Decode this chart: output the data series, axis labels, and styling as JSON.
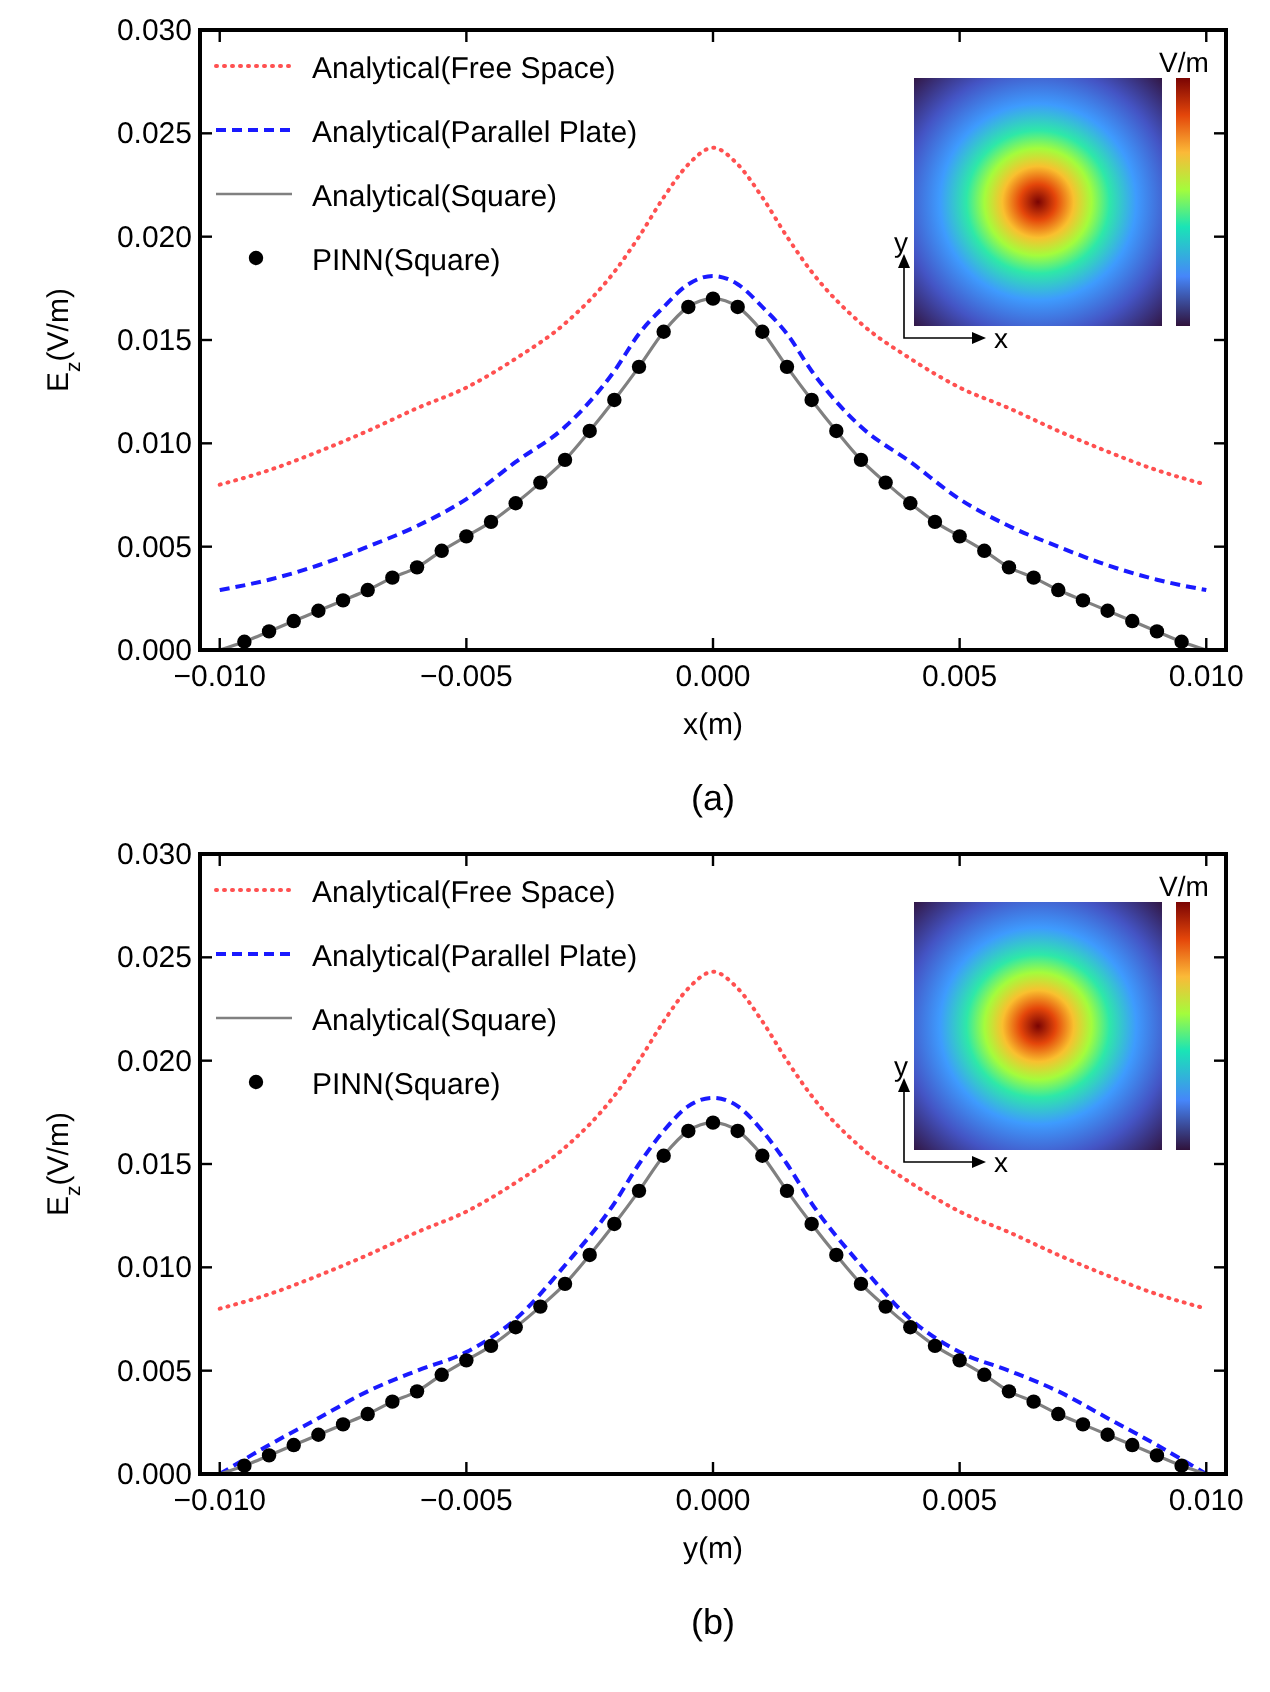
{
  "chart_data": [
    {
      "type": "line",
      "title": "(a)",
      "xlabel": "x(m)",
      "ylabel": "E$_{z}$(V/m)",
      "xlim": [
        -0.0104,
        0.0104
      ],
      "ylim": [
        0,
        0.03
      ],
      "xticks": [
        {
          "value": -0.01,
          "label": "−0.010"
        },
        {
          "value": -0.005,
          "label": "−0.005"
        },
        {
          "value": 0,
          "label": "0.000"
        },
        {
          "value": 0.005,
          "label": "0.005"
        },
        {
          "value": 0.01,
          "label": "0.010"
        }
      ],
      "yticks": [
        {
          "value": 0,
          "label": "0.000"
        },
        {
          "value": 0.005,
          "label": "0.005"
        },
        {
          "value": 0.01,
          "label": "0.010"
        },
        {
          "value": 0.015,
          "label": "0.015"
        },
        {
          "value": 0.02,
          "label": "0.020"
        },
        {
          "value": 0.025,
          "label": "0.025"
        },
        {
          "value": 0.03,
          "label": "0.030"
        }
      ],
      "legend": "top left",
      "grid": false,
      "annotations": [
        "V/m",
        "x",
        "y"
      ],
      "series": [
        {
          "name": "Analytical(Free Space)",
          "line_style": "dotted",
          "color": "#ff5050",
          "x": [
            -0.01,
            -0.009,
            -0.008,
            -0.007,
            -0.006,
            -0.005,
            -0.004,
            -0.003,
            -0.002,
            -0.0015,
            -0.001,
            -0.0005,
            0,
            0.0005,
            0.001,
            0.0015,
            0.002,
            0.003,
            0.004,
            0.005,
            0.006,
            0.007,
            0.008,
            0.009,
            0.01
          ],
          "values": [
            0.008,
            0.0087,
            0.0096,
            0.0106,
            0.0117,
            0.0127,
            0.0141,
            0.0158,
            0.0183,
            0.02,
            0.0219,
            0.0235,
            0.0243,
            0.0235,
            0.0219,
            0.02,
            0.0183,
            0.0158,
            0.0141,
            0.0127,
            0.0117,
            0.0106,
            0.0096,
            0.0087,
            0.008
          ]
        },
        {
          "name": "Analytical(Parallel Plate)",
          "line_style": "dashed",
          "color": "#1a1aff",
          "x": [
            -0.01,
            -0.009,
            -0.008,
            -0.007,
            -0.006,
            -0.005,
            -0.004,
            -0.003,
            -0.002,
            -0.0015,
            -0.001,
            -0.0005,
            0,
            0.0005,
            0.001,
            0.0015,
            0.002,
            0.003,
            0.004,
            0.005,
            0.006,
            0.007,
            0.008,
            0.009,
            0.01
          ],
          "values": [
            0.0029,
            0.0034,
            0.0041,
            0.005,
            0.006,
            0.0073,
            0.0091,
            0.0108,
            0.0135,
            0.0153,
            0.0166,
            0.0177,
            0.0181,
            0.0177,
            0.0166,
            0.0153,
            0.0135,
            0.0108,
            0.0091,
            0.0073,
            0.006,
            0.005,
            0.0041,
            0.0034,
            0.0029
          ]
        },
        {
          "name": "Analytical(Square)",
          "line_style": "solid",
          "color": "#808080",
          "x": [
            -0.01,
            -0.0095,
            -0.009,
            -0.0085,
            -0.008,
            -0.0075,
            -0.007,
            -0.0065,
            -0.006,
            -0.0055,
            -0.005,
            -0.0045,
            -0.004,
            -0.0035,
            -0.003,
            -0.0025,
            -0.002,
            -0.0015,
            -0.001,
            -0.0005,
            0,
            0.0005,
            0.001,
            0.0015,
            0.002,
            0.0025,
            0.003,
            0.0035,
            0.004,
            0.0045,
            0.005,
            0.0055,
            0.006,
            0.0065,
            0.007,
            0.0075,
            0.008,
            0.0085,
            0.009,
            0.0095,
            0.01
          ],
          "values": [
            0,
            0.0004,
            0.0009,
            0.0014,
            0.0019,
            0.0024,
            0.0029,
            0.0035,
            0.004,
            0.0048,
            0.0055,
            0.0062,
            0.0071,
            0.0081,
            0.0092,
            0.0106,
            0.0121,
            0.0137,
            0.0154,
            0.0166,
            0.017,
            0.0166,
            0.0154,
            0.0137,
            0.0121,
            0.0106,
            0.0092,
            0.0081,
            0.0071,
            0.0062,
            0.0055,
            0.0048,
            0.004,
            0.0035,
            0.0029,
            0.0024,
            0.0019,
            0.0014,
            0.0009,
            0.0004,
            0
          ]
        },
        {
          "name": "PINN(Square)",
          "type": "scatter",
          "marker": "circle",
          "color": "#000000",
          "x": [
            -0.0095,
            -0.009,
            -0.0085,
            -0.008,
            -0.0075,
            -0.007,
            -0.0065,
            -0.006,
            -0.0055,
            -0.005,
            -0.0045,
            -0.004,
            -0.0035,
            -0.003,
            -0.0025,
            -0.002,
            -0.0015,
            -0.001,
            -0.0005,
            0,
            0.0005,
            0.001,
            0.0015,
            0.002,
            0.0025,
            0.003,
            0.0035,
            0.004,
            0.0045,
            0.005,
            0.0055,
            0.006,
            0.0065,
            0.007,
            0.0075,
            0.008,
            0.0085,
            0.009,
            0.0095
          ],
          "values": [
            0.0004,
            0.0009,
            0.0014,
            0.0019,
            0.0024,
            0.0029,
            0.0035,
            0.004,
            0.0048,
            0.0055,
            0.0062,
            0.0071,
            0.0081,
            0.0092,
            0.0106,
            0.0121,
            0.0137,
            0.0154,
            0.0166,
            0.017,
            0.0166,
            0.0154,
            0.0137,
            0.0121,
            0.0106,
            0.0092,
            0.0081,
            0.0071,
            0.0062,
            0.0055,
            0.0048,
            0.004,
            0.0035,
            0.0029,
            0.0024,
            0.0019,
            0.0014,
            0.0009,
            0.0004
          ]
        }
      ]
    },
    {
      "type": "line",
      "title": "(b)",
      "xlabel": "y(m)",
      "ylabel": "E$_{z}$(V/m)",
      "xlim": [
        -0.0104,
        0.0104
      ],
      "ylim": [
        0,
        0.03
      ],
      "xticks": [
        {
          "value": -0.01,
          "label": "−0.010"
        },
        {
          "value": -0.005,
          "label": "−0.005"
        },
        {
          "value": 0,
          "label": "0.000"
        },
        {
          "value": 0.005,
          "label": "0.005"
        },
        {
          "value": 0.01,
          "label": "0.010"
        }
      ],
      "yticks": [
        {
          "value": 0,
          "label": "0.000"
        },
        {
          "value": 0.005,
          "label": "0.005"
        },
        {
          "value": 0.01,
          "label": "0.010"
        },
        {
          "value": 0.015,
          "label": "0.015"
        },
        {
          "value": 0.02,
          "label": "0.020"
        },
        {
          "value": 0.025,
          "label": "0.025"
        },
        {
          "value": 0.03,
          "label": "0.030"
        }
      ],
      "legend": "top left",
      "grid": false,
      "annotations": [
        "V/m",
        "x",
        "y"
      ],
      "series": [
        {
          "name": "Analytical(Free Space)",
          "line_style": "dotted",
          "color": "#ff5050",
          "x": [
            -0.01,
            -0.009,
            -0.008,
            -0.007,
            -0.006,
            -0.005,
            -0.004,
            -0.003,
            -0.002,
            -0.0015,
            -0.001,
            -0.0005,
            0,
            0.0005,
            0.001,
            0.0015,
            0.002,
            0.003,
            0.004,
            0.005,
            0.006,
            0.007,
            0.008,
            0.009,
            0.01
          ],
          "values": [
            0.008,
            0.0087,
            0.0096,
            0.0106,
            0.0117,
            0.0127,
            0.0141,
            0.0158,
            0.0183,
            0.02,
            0.0219,
            0.0235,
            0.0243,
            0.0235,
            0.0219,
            0.02,
            0.0183,
            0.0158,
            0.0141,
            0.0127,
            0.0117,
            0.0106,
            0.0096,
            0.0087,
            0.008
          ]
        },
        {
          "name": "Analytical(Parallel Plate)",
          "line_style": "dashed",
          "color": "#1a1aff",
          "x": [
            -0.01,
            -0.009,
            -0.008,
            -0.007,
            -0.006,
            -0.005,
            -0.004,
            -0.003,
            -0.002,
            -0.0015,
            -0.001,
            -0.0005,
            0,
            0.0005,
            0.001,
            0.0015,
            0.002,
            0.003,
            0.004,
            0.005,
            0.006,
            0.007,
            0.008,
            0.009,
            0.01
          ],
          "values": [
            0,
            0.0014,
            0.0027,
            0.004,
            0.005,
            0.0059,
            0.0075,
            0.0101,
            0.0131,
            0.015,
            0.0166,
            0.0178,
            0.0182,
            0.0178,
            0.0166,
            0.015,
            0.0131,
            0.0101,
            0.0075,
            0.0059,
            0.005,
            0.004,
            0.0027,
            0.0014,
            0
          ]
        },
        {
          "name": "Analytical(Square)",
          "line_style": "solid",
          "color": "#808080",
          "x": [
            -0.01,
            -0.0095,
            -0.009,
            -0.0085,
            -0.008,
            -0.0075,
            -0.007,
            -0.0065,
            -0.006,
            -0.0055,
            -0.005,
            -0.0045,
            -0.004,
            -0.0035,
            -0.003,
            -0.0025,
            -0.002,
            -0.0015,
            -0.001,
            -0.0005,
            0,
            0.0005,
            0.001,
            0.0015,
            0.002,
            0.0025,
            0.003,
            0.0035,
            0.004,
            0.0045,
            0.005,
            0.0055,
            0.006,
            0.0065,
            0.007,
            0.0075,
            0.008,
            0.0085,
            0.009,
            0.0095,
            0.01
          ],
          "values": [
            0,
            0.0004,
            0.0009,
            0.0014,
            0.0019,
            0.0024,
            0.0029,
            0.0035,
            0.004,
            0.0048,
            0.0055,
            0.0062,
            0.0071,
            0.0081,
            0.0092,
            0.0106,
            0.0121,
            0.0137,
            0.0154,
            0.0166,
            0.017,
            0.0166,
            0.0154,
            0.0137,
            0.0121,
            0.0106,
            0.0092,
            0.0081,
            0.0071,
            0.0062,
            0.0055,
            0.0048,
            0.004,
            0.0035,
            0.0029,
            0.0024,
            0.0019,
            0.0014,
            0.0009,
            0.0004,
            0
          ]
        },
        {
          "name": "PINN(Square)",
          "type": "scatter",
          "marker": "circle",
          "color": "#000000",
          "x": [
            -0.0095,
            -0.009,
            -0.0085,
            -0.008,
            -0.0075,
            -0.007,
            -0.0065,
            -0.006,
            -0.0055,
            -0.005,
            -0.0045,
            -0.004,
            -0.0035,
            -0.003,
            -0.0025,
            -0.002,
            -0.0015,
            -0.001,
            -0.0005,
            0,
            0.0005,
            0.001,
            0.0015,
            0.002,
            0.0025,
            0.003,
            0.0035,
            0.004,
            0.0045,
            0.005,
            0.0055,
            0.006,
            0.0065,
            0.007,
            0.0075,
            0.008,
            0.0085,
            0.009,
            0.0095
          ],
          "values": [
            0.0004,
            0.0009,
            0.0014,
            0.0019,
            0.0024,
            0.0029,
            0.0035,
            0.004,
            0.0048,
            0.0055,
            0.0062,
            0.0071,
            0.0081,
            0.0092,
            0.0106,
            0.0121,
            0.0137,
            0.0154,
            0.0166,
            0.017,
            0.0166,
            0.0154,
            0.0137,
            0.0121,
            0.0106,
            0.0092,
            0.0081,
            0.0071,
            0.0062,
            0.0055,
            0.0048,
            0.004,
            0.0035,
            0.0029,
            0.0024,
            0.0019,
            0.0014,
            0.0009,
            0.0004
          ]
        }
      ]
    }
  ]
}
